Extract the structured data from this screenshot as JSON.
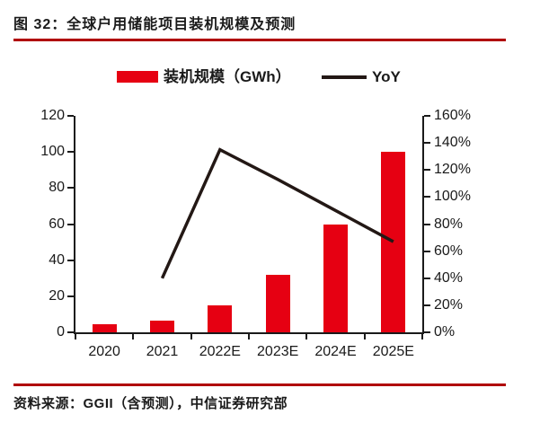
{
  "page": {
    "title": "图 32：全球户用储能项目装机规模及预测",
    "source": "资料来源：GGII（含预测），中信证券研究部"
  },
  "colors": {
    "bar": "#e60012",
    "line": "#231815",
    "rule": "#b00000",
    "axis": "#1a1a1a",
    "text": "#1a1a1a"
  },
  "chart_data": {
    "type": "bar+line",
    "title": "全球户用储能项目装机规模及预测",
    "categories": [
      "2020",
      "2021",
      "2022E",
      "2023E",
      "2024E",
      "2025E"
    ],
    "series": [
      {
        "name": "装机规模（GWh）",
        "type": "bar",
        "axis": "left",
        "values": [
          4.4,
          6.3,
          15,
          32,
          60,
          100
        ]
      },
      {
        "name": "YoY",
        "type": "line",
        "axis": "right",
        "unit": "%",
        "values": [
          null,
          40,
          135,
          113,
          90,
          67
        ]
      }
    ],
    "left_axis": {
      "min": 0,
      "max": 120,
      "step": 20,
      "labels": [
        "0",
        "20",
        "40",
        "60",
        "80",
        "100",
        "120"
      ]
    },
    "right_axis": {
      "min": 0,
      "max": 160,
      "step": 20,
      "labels": [
        "0%",
        "20%",
        "40%",
        "60%",
        "80%",
        "100%",
        "120%",
        "140%",
        "160%"
      ]
    },
    "legend_position": "top",
    "grid": false
  }
}
